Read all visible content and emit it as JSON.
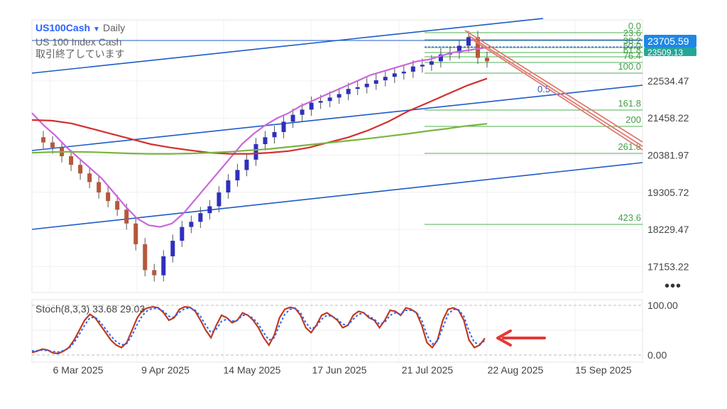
{
  "header": {
    "symbol": "US100Cash",
    "timeframe": "Daily",
    "instrument_name": "US 100 Index Cash",
    "status_text": "取引終了しています"
  },
  "chart_data": [
    {
      "type": "line",
      "title": "US100Cash Daily",
      "subtitle": "US 100 Index Cash",
      "ylim": [
        16400,
        24300
      ],
      "y_ticks": [
        17153.22,
        18229.47,
        19305.72,
        20381.97,
        21458.22,
        22534.47
      ],
      "current_price_labels": [
        "23705.59",
        "23509.13"
      ],
      "x_ticks": [
        "6 Mar 2025",
        "9 Apr 2025",
        "14 May 2025",
        "17 Jun 2025",
        "21 Jul 2025",
        "22 Aug 2025",
        "15 Sep 2025"
      ],
      "fibonacci_levels": [
        "0.0",
        "23.6",
        "38.2",
        "50.0",
        "61.8",
        "76.4",
        "100.0",
        "161.8",
        "200",
        "261.8",
        "423.6"
      ],
      "channel_label": "0.5",
      "series": [
        {
          "values": [
            20900,
            20750,
            20600,
            20350,
            20100,
            19850,
            19600,
            19300,
            19050,
            18800,
            18400,
            17800,
            17050,
            16900,
            17450,
            17900,
            18300,
            18450,
            18700,
            18900,
            19300,
            19650,
            19950,
            20250,
            20700,
            20900,
            21050,
            21350,
            21550,
            21700,
            21900,
            21950,
            22050,
            22150,
            22300,
            22350,
            22450,
            22550,
            22650,
            22750,
            22800,
            22950,
            23000,
            23100,
            23300,
            23350,
            23550,
            23800,
            23200,
            23100
          ]
        },
        {
          "values": [
            21600,
            21250,
            20950,
            20600,
            20300,
            20000,
            19700,
            19300,
            18900,
            18550,
            18350,
            18300,
            18400,
            18700,
            19100,
            19500,
            19900,
            20300,
            20700,
            21000,
            21250,
            21450,
            21600,
            21800,
            21950,
            22100,
            22250,
            22400,
            22550,
            22700,
            22800,
            22900,
            23000,
            23100,
            23150,
            23250,
            23350,
            23400,
            23450,
            23500
          ]
        },
        {
          "values": [
            21400,
            21380,
            21300,
            21150,
            21000,
            20850,
            20700,
            20600,
            20520,
            20450,
            20420,
            20420,
            20450,
            20500,
            20600,
            20750,
            20900,
            21100,
            21350,
            21650,
            21900,
            22150,
            22400,
            22600
          ]
        },
        {
          "values": [
            20450,
            20470,
            20480,
            20470,
            20450,
            20430,
            20420,
            20420,
            20430,
            20450,
            20480,
            20520,
            20560,
            20620,
            20680,
            20740,
            20800,
            20860,
            20930,
            21000,
            21080,
            21150,
            21230,
            21290
          ]
        }
      ]
    },
    {
      "type": "line",
      "title": "Stoch(8,3,3) 33.68 29.03",
      "ylim": [
        0,
        100
      ],
      "y_ticks": [
        "100.00",
        "0.00"
      ],
      "series": [
        {
          "values": [
            5,
            8,
            12,
            10,
            4,
            3,
            8,
            15,
            30,
            50,
            70,
            82,
            75,
            60,
            45,
            30,
            20,
            15,
            25,
            50,
            75,
            90,
            95,
            97,
            95,
            85,
            70,
            75,
            92,
            97,
            96,
            88,
            70,
            50,
            35,
            60,
            80,
            75,
            65,
            70,
            85,
            80,
            70,
            55,
            35,
            20,
            40,
            75,
            92,
            96,
            94,
            80,
            55,
            45,
            60,
            80,
            85,
            78,
            70,
            55,
            60,
            80,
            88,
            85,
            75,
            70,
            55,
            70,
            90,
            88,
            80,
            95,
            92,
            85,
            60,
            25,
            15,
            30,
            70,
            92,
            95,
            90,
            70,
            30,
            15,
            20,
            33.68
          ]
        },
        {
          "values": [
            8,
            9,
            10,
            9,
            7,
            6,
            9,
            13,
            25,
            42,
            60,
            75,
            76,
            66,
            52,
            38,
            27,
            20,
            23,
            40,
            62,
            80,
            90,
            94,
            93,
            88,
            78,
            76,
            86,
            93,
            95,
            90,
            78,
            60,
            45,
            52,
            68,
            72,
            68,
            70,
            80,
            80,
            74,
            62,
            45,
            30,
            35,
            60,
            82,
            92,
            94,
            85,
            65,
            52,
            58,
            72,
            80,
            78,
            72,
            62,
            60,
            72,
            82,
            84,
            78,
            72,
            62,
            66,
            80,
            85,
            82,
            90,
            90,
            86,
            70,
            40,
            22,
            28,
            55,
            82,
            92,
            91,
            78,
            48,
            25,
            22,
            29.03
          ]
        }
      ]
    }
  ]
}
